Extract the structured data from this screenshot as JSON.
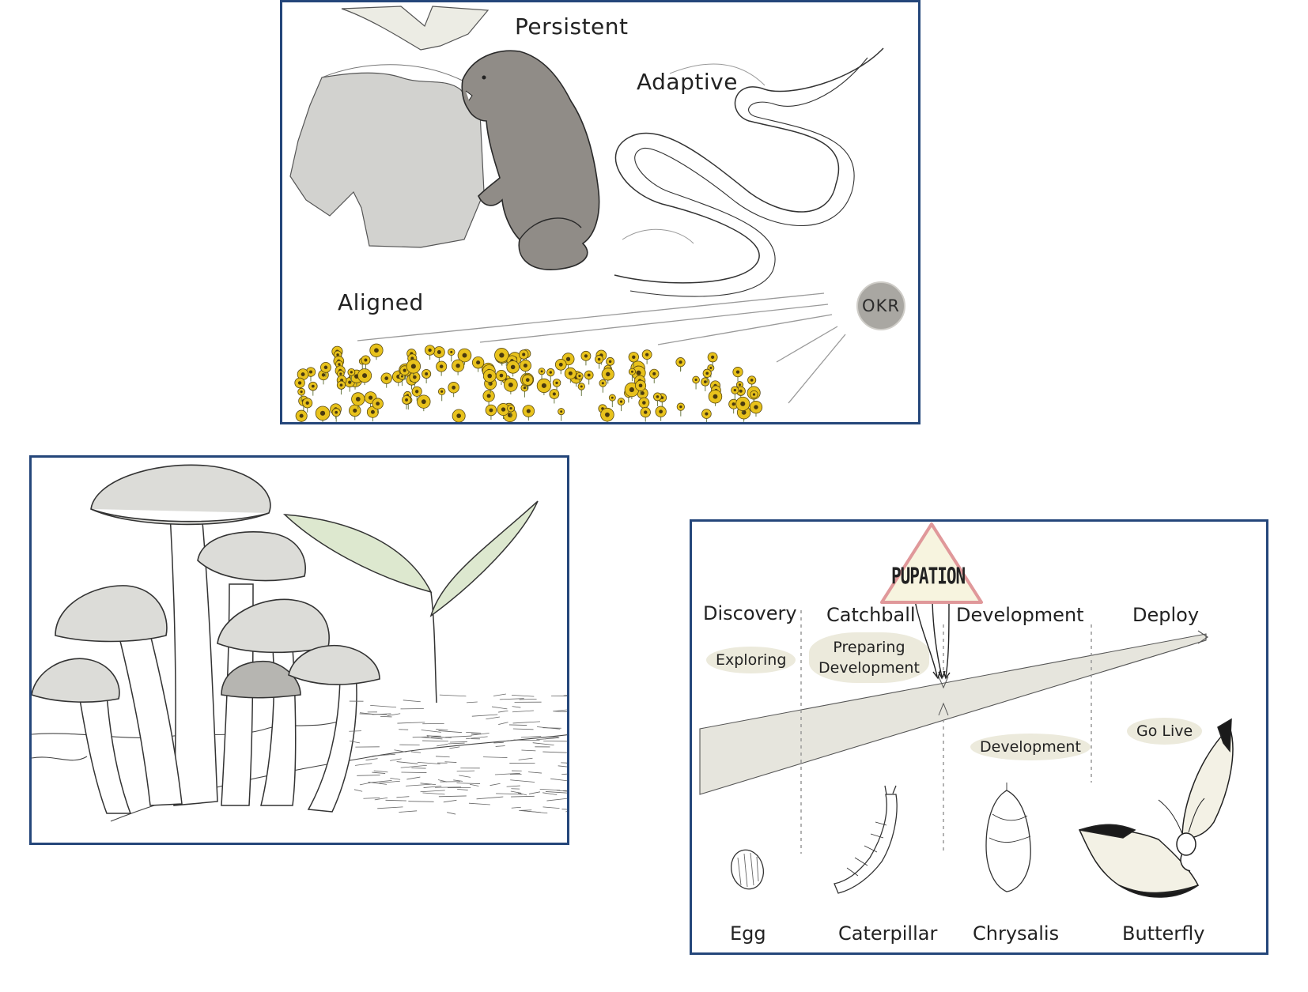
{
  "top_panel": {
    "labels": {
      "persistent": "Persistent",
      "adaptive": "Adaptive",
      "aligned": "Aligned",
      "okr": "OKR"
    },
    "icons": [
      "beaver-icon",
      "river-icon",
      "sunflower-field-icon"
    ],
    "colors": {
      "beaver": "#908c87",
      "rock": "#cfcfcd",
      "sunflower": "#e8c21c",
      "border": "#24467a"
    }
  },
  "mushroom_panel": {
    "icons": [
      "mushroom-cluster-icon",
      "seedling-icon"
    ],
    "colors": {
      "cap": "#dcdcd8",
      "leaf": "#dde8cf"
    }
  },
  "lifecycle_panel": {
    "pupation": "PUPATION",
    "phases": [
      "Discovery",
      "Catchball",
      "Development",
      "Deploy"
    ],
    "activities": {
      "exploring": "Exploring",
      "preparing_line1": "Preparing",
      "preparing_line2": "Development",
      "development": "Development",
      "go_live": "Go Live"
    },
    "stages": [
      "Egg",
      "Caterpillar",
      "Chrysalis",
      "Butterfly"
    ],
    "colors": {
      "warning_border": "#e0989a",
      "warning_fill": "#f7f4df",
      "band": "#e6e5dd"
    }
  }
}
